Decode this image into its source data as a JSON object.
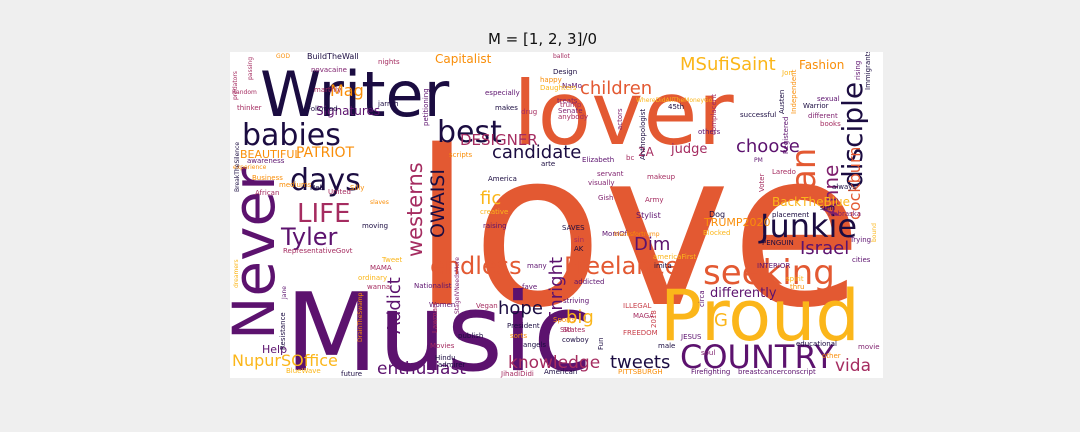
{
  "figure": {
    "title": "M = [1, 2, 3]/0"
  },
  "palette": {
    "dark": "#1b0c41",
    "purple": "#5c126e",
    "magenta": "#7e1f6d",
    "crimson": "#a52c60",
    "red": "#c83f4a",
    "orange": "#e35932",
    "amber": "#f98e09",
    "yellow": "#fbb61a"
  },
  "words": [
    {
      "text": "love",
      "color": "#e35932"
    },
    {
      "text": "Music",
      "color": "#5c126e"
    },
    {
      "text": "lover",
      "color": "#e35932"
    },
    {
      "text": "Writer",
      "color": "#1b0c41"
    },
    {
      "text": "Proud",
      "color": "#fbb61a"
    },
    {
      "text": "Never",
      "color": "#5c126e"
    },
    {
      "text": "COUNTRY",
      "color": "#5c126e"
    },
    {
      "text": "Junkie",
      "color": "#1b0c41"
    },
    {
      "text": "seeking",
      "color": "#e35932"
    },
    {
      "text": "fan",
      "color": "#e35932"
    },
    {
      "text": "Enright",
      "color": "#5c126e"
    },
    {
      "text": "babies",
      "color": "#1b0c41"
    },
    {
      "text": "best",
      "color": "#1b0c41"
    },
    {
      "text": "days",
      "color": "#1b0c41"
    },
    {
      "text": "disciple",
      "color": "#1b0c41"
    },
    {
      "text": "LIFE",
      "color": "#a52c60"
    },
    {
      "text": "Tyler",
      "color": "#5c126e"
    },
    {
      "text": "Freelance",
      "color": "#e35932"
    },
    {
      "text": "endless",
      "color": "#e35932"
    },
    {
      "text": "westerns",
      "color": "#a52c60"
    },
    {
      "text": "Anne",
      "color": "#7e1f6d"
    },
    {
      "text": "cockburn",
      "color": "#e35932"
    },
    {
      "text": "OWAISI",
      "color": "#1b0c41"
    },
    {
      "text": "children",
      "color": "#e35932"
    },
    {
      "text": "candidate",
      "color": "#1b0c41"
    },
    {
      "text": "MSufiSaint",
      "color": "#fbb61a"
    },
    {
      "text": "choose",
      "color": "#5c126e"
    },
    {
      "text": "Israel",
      "color": "#5c126e"
    },
    {
      "text": "Addict",
      "color": "#5c126e"
    },
    {
      "text": "hope",
      "color": "#1b0c41"
    },
    {
      "text": "knowledge",
      "color": "#a52c60"
    },
    {
      "text": "tweets",
      "color": "#1b0c41"
    },
    {
      "text": "enthusiast",
      "color": "#5c126e"
    },
    {
      "text": "NupurSOffice",
      "color": "#fbb61a"
    },
    {
      "text": "vida",
      "color": "#a52c60"
    },
    {
      "text": "big",
      "color": "#fbb61a"
    },
    {
      "text": "fic",
      "color": "#fbb61a"
    },
    {
      "text": "Dim",
      "color": "#5c126e"
    },
    {
      "text": "Mag",
      "color": "#f98e09"
    },
    {
      "text": "PATRIOT",
      "color": "#f98e09"
    },
    {
      "text": "DESIGNER",
      "color": "#a52c60"
    },
    {
      "text": "Signatures",
      "color": "#5c126e"
    },
    {
      "text": "Capitalist",
      "color": "#f98e09"
    },
    {
      "text": "differently",
      "color": "#5c126e"
    },
    {
      "text": "BEAUTIFUL",
      "color": "#f98e09"
    },
    {
      "text": "judge",
      "color": "#a52c60"
    },
    {
      "text": "Fashion",
      "color": "#f98e09"
    },
    {
      "text": "2A",
      "color": "#a52c60"
    },
    {
      "text": "BackTheBlue",
      "color": "#fbb61a"
    },
    {
      "text": "TRUMP2020",
      "color": "#f98e09"
    },
    {
      "text": "Help",
      "color": "#5c126e"
    },
    {
      "text": "G",
      "color": "#fbb61a"
    },
    {
      "text": "BuildTheWall",
      "color": "#1b0c41"
    },
    {
      "text": "novacaine",
      "color": "#7e1f6d"
    },
    {
      "text": "GOD",
      "color": "#f98e09"
    },
    {
      "text": "Design",
      "color": "#1b0c41"
    },
    {
      "text": "NaMo",
      "color": "#5c126e"
    },
    {
      "text": "treats",
      "color": "#7e1f6d"
    },
    {
      "text": "Trying",
      "color": "#5c126e"
    },
    {
      "text": "cities",
      "color": "#5c126e"
    },
    {
      "text": "Nebraska",
      "color": "#7e1f6d"
    },
    {
      "text": "always",
      "color": "#1b0c41"
    },
    {
      "text": "educational",
      "color": "#1b0c41"
    },
    {
      "text": "movie",
      "color": "#7e1f6d"
    },
    {
      "text": "other",
      "color": "#f98e09"
    },
    {
      "text": "Firefighting",
      "color": "#5c126e"
    },
    {
      "text": "breastcancerconscript",
      "color": "#5c126e"
    },
    {
      "text": "PITTSBURGH",
      "color": "#f98e09"
    },
    {
      "text": "American",
      "color": "#1b0c41"
    },
    {
      "text": "JihadiDidi",
      "color": "#a52c60"
    },
    {
      "text": "future",
      "color": "#1b0c41"
    },
    {
      "text": "Resistance",
      "color": "#1b0c41"
    },
    {
      "text": "BlueWave",
      "color": "#fbb61a"
    },
    {
      "text": "Movies",
      "color": "#a52c60"
    },
    {
      "text": "Hindu",
      "color": "#1b0c41"
    },
    {
      "text": "publish",
      "color": "#1b0c41"
    },
    {
      "text": "President",
      "color": "#1b0c41"
    },
    {
      "text": "States",
      "color": "#a52c60"
    },
    {
      "text": "cowboy",
      "color": "#1b0c41"
    },
    {
      "text": "sorts",
      "color": "#f98e09"
    },
    {
      "text": "striving",
      "color": "#5c126e"
    },
    {
      "text": "ILLEGAL",
      "color": "#c83f4a"
    },
    {
      "text": "MAGA",
      "color": "#a52c60"
    },
    {
      "text": "JESUS",
      "color": "#5c126e"
    },
    {
      "text": "FREEDOM",
      "color": "#c83f4a"
    },
    {
      "text": "soul",
      "color": "#7e1f6d"
    },
    {
      "text": "circa",
      "color": "#5c126e"
    },
    {
      "text": "male",
      "color": "#1b0c41"
    },
    {
      "text": "Fun",
      "color": "#1b0c41"
    },
    {
      "text": "Women",
      "color": "#5c126e"
    },
    {
      "text": "Vegan",
      "color": "#a52c60"
    },
    {
      "text": "Nationalist",
      "color": "#5c126e"
    },
    {
      "text": "admirer",
      "color": "#1b0c41"
    },
    {
      "text": "Lawman",
      "color": "#a52c60"
    },
    {
      "text": "angels",
      "color": "#1b0c41"
    },
    {
      "text": "Sports",
      "color": "#f98e09"
    },
    {
      "text": "addicted",
      "color": "#5c126e"
    },
    {
      "text": "fave",
      "color": "#5c126e"
    },
    {
      "text": "many",
      "color": "#5c126e"
    },
    {
      "text": "Jane",
      "color": "#5c126e"
    },
    {
      "text": "RepresentativeGovt",
      "color": "#a52c60"
    },
    {
      "text": "MAMA",
      "color": "#a52c60"
    },
    {
      "text": "ordinary",
      "color": "#fbb61a"
    },
    {
      "text": "wanna",
      "color": "#a52c60"
    },
    {
      "text": "moving",
      "color": "#1b0c41"
    },
    {
      "text": "SAVES",
      "color": "#1b0c41"
    },
    {
      "text": "raising",
      "color": "#5c126e"
    },
    {
      "text": "creative",
      "color": "#fbb61a"
    },
    {
      "text": "Army",
      "color": "#a52c60"
    },
    {
      "text": "Stylist",
      "color": "#5c126e"
    },
    {
      "text": "Blocked",
      "color": "#fbb61a"
    },
    {
      "text": "PENGUIN",
      "color": "#1b0c41"
    },
    {
      "text": "Dog",
      "color": "#1b0c41"
    },
    {
      "text": "Gish",
      "color": "#7e1f6d"
    },
    {
      "text": "makeup",
      "color": "#a52c60"
    },
    {
      "text": "America",
      "color": "#1b0c41"
    },
    {
      "text": "Elizabeth",
      "color": "#5c126e"
    },
    {
      "text": "servant",
      "color": "#7e1f6d"
    },
    {
      "text": "visually",
      "color": "#7e1f6d"
    },
    {
      "text": "arte",
      "color": "#1b0c41"
    },
    {
      "text": "scripts",
      "color": "#f98e09"
    },
    {
      "text": "Silly",
      "color": "#f98e09"
    },
    {
      "text": "United",
      "color": "#a52c60"
    },
    {
      "text": "Neb",
      "color": "#1b0c41"
    },
    {
      "text": "Business",
      "color": "#f98e09"
    },
    {
      "text": "mediums",
      "color": "#f98e09"
    },
    {
      "text": "African",
      "color": "#a52c60"
    },
    {
      "text": "experience",
      "color": "#f98e09"
    },
    {
      "text": "awareness",
      "color": "#5c126e"
    },
    {
      "text": "thinker",
      "color": "#a52c60"
    },
    {
      "text": "Random",
      "color": "#a52c60"
    },
    {
      "text": "predators",
      "color": "#a52c60"
    },
    {
      "text": "Followed",
      "color": "#1b0c41"
    },
    {
      "text": "jarrah",
      "color": "#1b0c41"
    },
    {
      "text": "nights",
      "color": "#a52c60"
    },
    {
      "text": "especially",
      "color": "#5c126e"
    },
    {
      "text": "petitioning",
      "color": "#5c126e"
    },
    {
      "text": "makes",
      "color": "#1b0c41"
    },
    {
      "text": "drug",
      "color": "#a52c60"
    },
    {
      "text": "happy",
      "color": "#f98e09"
    },
    {
      "text": "Senate",
      "color": "#7e1f6d"
    },
    {
      "text": "trump",
      "color": "#a52c60"
    },
    {
      "text": "anybody",
      "color": "#a52c60"
    },
    {
      "text": "actors",
      "color": "#7e1f6d"
    },
    {
      "text": "45th",
      "color": "#1b0c41"
    },
    {
      "text": "Anthropologist",
      "color": "#1b0c41"
    },
    {
      "text": "complacent",
      "color": "#a52c60"
    },
    {
      "text": "others",
      "color": "#5c126e"
    },
    {
      "text": "Austen",
      "color": "#1b0c41"
    },
    {
      "text": "successful",
      "color": "#1b0c41"
    },
    {
      "text": "Independent",
      "color": "#f98e09"
    },
    {
      "text": "sexual",
      "color": "#5c126e"
    },
    {
      "text": "Warrior",
      "color": "#1b0c41"
    },
    {
      "text": "different",
      "color": "#7e1f6d"
    },
    {
      "text": "books",
      "color": "#a52c60"
    },
    {
      "text": "Immigrants",
      "color": "#1b0c41"
    },
    {
      "text": "rising",
      "color": "#5c126e"
    },
    {
      "text": "Registered",
      "color": "#5c126e"
    },
    {
      "text": "Laredo",
      "color": "#a52c60"
    },
    {
      "text": "Voter",
      "color": "#a52c60"
    },
    {
      "text": "placement",
      "color": "#1b0c41"
    },
    {
      "text": "sum",
      "color": "#1b0c41"
    },
    {
      "text": "INTERIOR",
      "color": "#5c126e"
    },
    {
      "text": "spirit",
      "color": "#fbb61a"
    },
    {
      "text": "thru",
      "color": "#f98e09"
    },
    {
      "text": "BreakTheSilence",
      "color": "#1b0c41"
    },
    {
      "text": "StageIVNeedsMore",
      "color": "#7e1f6d"
    },
    {
      "text": "DrainTheSwamp",
      "color": "#f98e09"
    },
    {
      "text": "AK",
      "color": "#1b0c41"
    },
    {
      "text": "sin",
      "color": "#a52c60"
    },
    {
      "text": "MomOf",
      "color": "#5c126e"
    },
    {
      "text": "imita",
      "color": "#1b0c41"
    },
    {
      "text": "PM",
      "color": "#5c126e"
    },
    {
      "text": "Jon",
      "color": "#fbb61a"
    },
    {
      "text": "marthly",
      "color": "#a52c60"
    },
    {
      "text": "bc",
      "color": "#a52c60"
    },
    {
      "text": "Daughters",
      "color": "#fbb61a"
    },
    {
      "text": "Tweet",
      "color": "#fbb61a"
    },
    {
      "text": "slaves",
      "color": "#f98e09"
    },
    {
      "text": "ballot",
      "color": "#a52c60"
    },
    {
      "text": "WhereDidAllTheMoneyGo",
      "color": "#fbb61a"
    },
    {
      "text": "blacksfortrump",
      "color": "#f98e09"
    },
    {
      "text": "americaFirst",
      "color": "#fbb61a"
    },
    {
      "text": "SIU",
      "color": "#a52c60"
    },
    {
      "text": "2018",
      "color": "#c83f4a"
    },
    {
      "text": "passing",
      "color": "#a52c60"
    },
    {
      "text": "dreamers",
      "color": "#fbb61a"
    },
    {
      "text": "bound",
      "color": "#fbb61a"
    }
  ]
}
